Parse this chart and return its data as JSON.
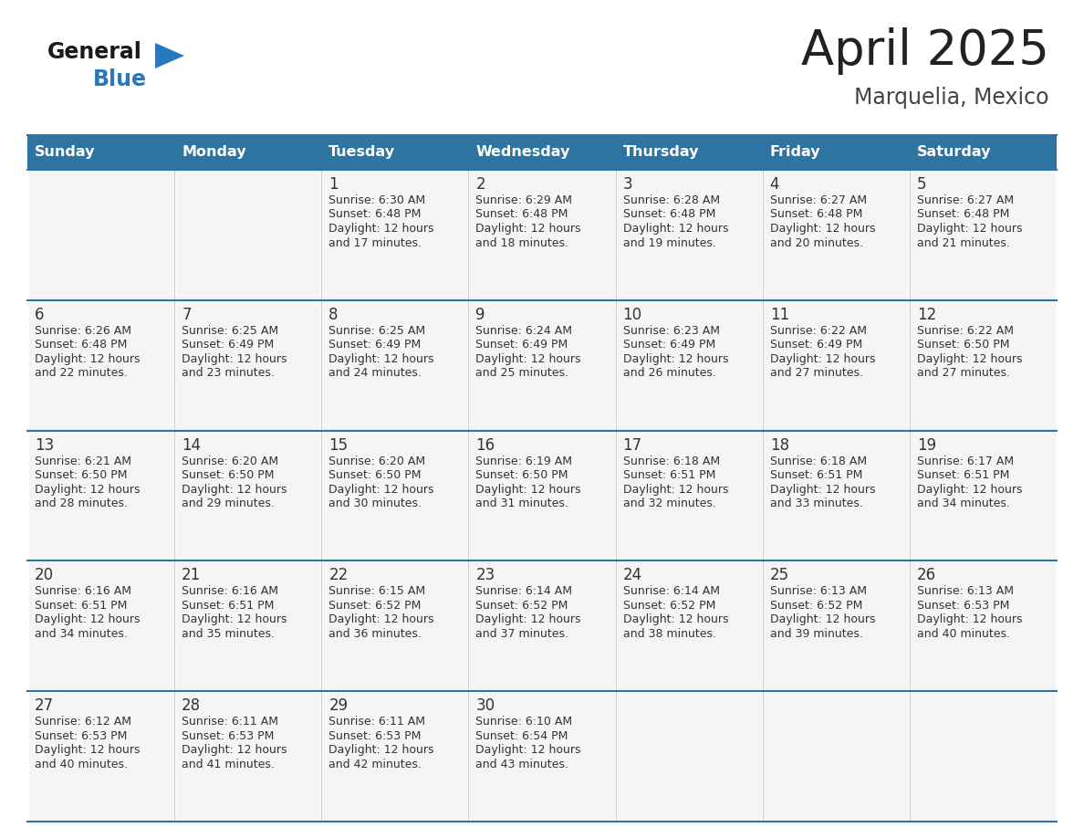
{
  "title": "April 2025",
  "subtitle": "Marquelia, Mexico",
  "header_bg": "#2E74A0",
  "header_text_color": "#FFFFFF",
  "cell_bg": "#F5F5F5",
  "border_color": "#2E74A0",
  "text_color": "#333333",
  "logo_general_color": "#1a1a1a",
  "logo_blue_color": "#2878BE",
  "logo_triangle_color": "#2878BE",
  "days_of_week": [
    "Sunday",
    "Monday",
    "Tuesday",
    "Wednesday",
    "Thursday",
    "Friday",
    "Saturday"
  ],
  "weeks": [
    [
      {
        "day": "",
        "sunrise": "",
        "sunset": "",
        "daylight1": "",
        "daylight2": ""
      },
      {
        "day": "",
        "sunrise": "",
        "sunset": "",
        "daylight1": "",
        "daylight2": ""
      },
      {
        "day": "1",
        "sunrise": "Sunrise: 6:30 AM",
        "sunset": "Sunset: 6:48 PM",
        "daylight1": "Daylight: 12 hours",
        "daylight2": "and 17 minutes."
      },
      {
        "day": "2",
        "sunrise": "Sunrise: 6:29 AM",
        "sunset": "Sunset: 6:48 PM",
        "daylight1": "Daylight: 12 hours",
        "daylight2": "and 18 minutes."
      },
      {
        "day": "3",
        "sunrise": "Sunrise: 6:28 AM",
        "sunset": "Sunset: 6:48 PM",
        "daylight1": "Daylight: 12 hours",
        "daylight2": "and 19 minutes."
      },
      {
        "day": "4",
        "sunrise": "Sunrise: 6:27 AM",
        "sunset": "Sunset: 6:48 PM",
        "daylight1": "Daylight: 12 hours",
        "daylight2": "and 20 minutes."
      },
      {
        "day": "5",
        "sunrise": "Sunrise: 6:27 AM",
        "sunset": "Sunset: 6:48 PM",
        "daylight1": "Daylight: 12 hours",
        "daylight2": "and 21 minutes."
      }
    ],
    [
      {
        "day": "6",
        "sunrise": "Sunrise: 6:26 AM",
        "sunset": "Sunset: 6:48 PM",
        "daylight1": "Daylight: 12 hours",
        "daylight2": "and 22 minutes."
      },
      {
        "day": "7",
        "sunrise": "Sunrise: 6:25 AM",
        "sunset": "Sunset: 6:49 PM",
        "daylight1": "Daylight: 12 hours",
        "daylight2": "and 23 minutes."
      },
      {
        "day": "8",
        "sunrise": "Sunrise: 6:25 AM",
        "sunset": "Sunset: 6:49 PM",
        "daylight1": "Daylight: 12 hours",
        "daylight2": "and 24 minutes."
      },
      {
        "day": "9",
        "sunrise": "Sunrise: 6:24 AM",
        "sunset": "Sunset: 6:49 PM",
        "daylight1": "Daylight: 12 hours",
        "daylight2": "and 25 minutes."
      },
      {
        "day": "10",
        "sunrise": "Sunrise: 6:23 AM",
        "sunset": "Sunset: 6:49 PM",
        "daylight1": "Daylight: 12 hours",
        "daylight2": "and 26 minutes."
      },
      {
        "day": "11",
        "sunrise": "Sunrise: 6:22 AM",
        "sunset": "Sunset: 6:49 PM",
        "daylight1": "Daylight: 12 hours",
        "daylight2": "and 27 minutes."
      },
      {
        "day": "12",
        "sunrise": "Sunrise: 6:22 AM",
        "sunset": "Sunset: 6:50 PM",
        "daylight1": "Daylight: 12 hours",
        "daylight2": "and 27 minutes."
      }
    ],
    [
      {
        "day": "13",
        "sunrise": "Sunrise: 6:21 AM",
        "sunset": "Sunset: 6:50 PM",
        "daylight1": "Daylight: 12 hours",
        "daylight2": "and 28 minutes."
      },
      {
        "day": "14",
        "sunrise": "Sunrise: 6:20 AM",
        "sunset": "Sunset: 6:50 PM",
        "daylight1": "Daylight: 12 hours",
        "daylight2": "and 29 minutes."
      },
      {
        "day": "15",
        "sunrise": "Sunrise: 6:20 AM",
        "sunset": "Sunset: 6:50 PM",
        "daylight1": "Daylight: 12 hours",
        "daylight2": "and 30 minutes."
      },
      {
        "day": "16",
        "sunrise": "Sunrise: 6:19 AM",
        "sunset": "Sunset: 6:50 PM",
        "daylight1": "Daylight: 12 hours",
        "daylight2": "and 31 minutes."
      },
      {
        "day": "17",
        "sunrise": "Sunrise: 6:18 AM",
        "sunset": "Sunset: 6:51 PM",
        "daylight1": "Daylight: 12 hours",
        "daylight2": "and 32 minutes."
      },
      {
        "day": "18",
        "sunrise": "Sunrise: 6:18 AM",
        "sunset": "Sunset: 6:51 PM",
        "daylight1": "Daylight: 12 hours",
        "daylight2": "and 33 minutes."
      },
      {
        "day": "19",
        "sunrise": "Sunrise: 6:17 AM",
        "sunset": "Sunset: 6:51 PM",
        "daylight1": "Daylight: 12 hours",
        "daylight2": "and 34 minutes."
      }
    ],
    [
      {
        "day": "20",
        "sunrise": "Sunrise: 6:16 AM",
        "sunset": "Sunset: 6:51 PM",
        "daylight1": "Daylight: 12 hours",
        "daylight2": "and 34 minutes."
      },
      {
        "day": "21",
        "sunrise": "Sunrise: 6:16 AM",
        "sunset": "Sunset: 6:51 PM",
        "daylight1": "Daylight: 12 hours",
        "daylight2": "and 35 minutes."
      },
      {
        "day": "22",
        "sunrise": "Sunrise: 6:15 AM",
        "sunset": "Sunset: 6:52 PM",
        "daylight1": "Daylight: 12 hours",
        "daylight2": "and 36 minutes."
      },
      {
        "day": "23",
        "sunrise": "Sunrise: 6:14 AM",
        "sunset": "Sunset: 6:52 PM",
        "daylight1": "Daylight: 12 hours",
        "daylight2": "and 37 minutes."
      },
      {
        "day": "24",
        "sunrise": "Sunrise: 6:14 AM",
        "sunset": "Sunset: 6:52 PM",
        "daylight1": "Daylight: 12 hours",
        "daylight2": "and 38 minutes."
      },
      {
        "day": "25",
        "sunrise": "Sunrise: 6:13 AM",
        "sunset": "Sunset: 6:52 PM",
        "daylight1": "Daylight: 12 hours",
        "daylight2": "and 39 minutes."
      },
      {
        "day": "26",
        "sunrise": "Sunrise: 6:13 AM",
        "sunset": "Sunset: 6:53 PM",
        "daylight1": "Daylight: 12 hours",
        "daylight2": "and 40 minutes."
      }
    ],
    [
      {
        "day": "27",
        "sunrise": "Sunrise: 6:12 AM",
        "sunset": "Sunset: 6:53 PM",
        "daylight1": "Daylight: 12 hours",
        "daylight2": "and 40 minutes."
      },
      {
        "day": "28",
        "sunrise": "Sunrise: 6:11 AM",
        "sunset": "Sunset: 6:53 PM",
        "daylight1": "Daylight: 12 hours",
        "daylight2": "and 41 minutes."
      },
      {
        "day": "29",
        "sunrise": "Sunrise: 6:11 AM",
        "sunset": "Sunset: 6:53 PM",
        "daylight1": "Daylight: 12 hours",
        "daylight2": "and 42 minutes."
      },
      {
        "day": "30",
        "sunrise": "Sunrise: 6:10 AM",
        "sunset": "Sunset: 6:54 PM",
        "daylight1": "Daylight: 12 hours",
        "daylight2": "and 43 minutes."
      },
      {
        "day": "",
        "sunrise": "",
        "sunset": "",
        "daylight1": "",
        "daylight2": ""
      },
      {
        "day": "",
        "sunrise": "",
        "sunset": "",
        "daylight1": "",
        "daylight2": ""
      },
      {
        "day": "",
        "sunrise": "",
        "sunset": "",
        "daylight1": "",
        "daylight2": ""
      }
    ]
  ]
}
